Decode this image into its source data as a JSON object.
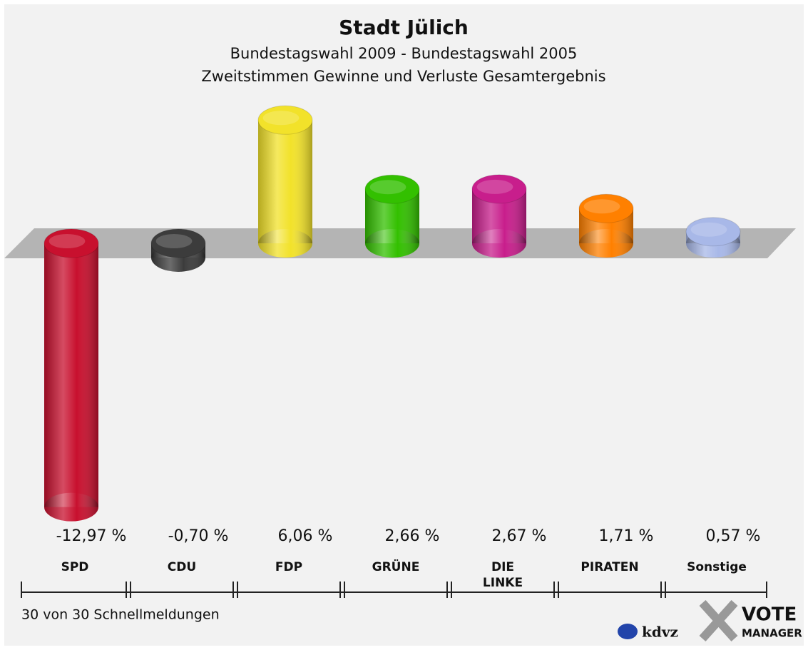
{
  "chart_data": {
    "type": "bar",
    "title": "Stadt Jülich",
    "subtitle": [
      "Bundestagswahl 2009 - Bundestagswahl 2005",
      "Zweitstimmen Gewinne und Verluste Gesamtergebnis"
    ],
    "categories": [
      "SPD",
      "CDU",
      "FDP",
      "GRÜNE",
      "DIE LINKE",
      "PIRATEN",
      "Sonstige"
    ],
    "values": [
      -12.97,
      -0.7,
      6.06,
      2.66,
      2.67,
      1.71,
      0.57
    ],
    "value_labels": [
      "-12,97 %",
      "-0,70 %",
      "6,06 %",
      "2,66 %",
      "2,67 %",
      "1,71 %",
      "0,57 %"
    ],
    "colors": [
      "#c8102e",
      "#3c3c3c",
      "#f2e22a",
      "#33c000",
      "#c81e8c",
      "#ff8000",
      "#a8b8e8"
    ],
    "footnote": "30 von 30 Schnellmeldungen",
    "logos": [
      "kdvz",
      "VOTE",
      "MANAGER"
    ]
  }
}
